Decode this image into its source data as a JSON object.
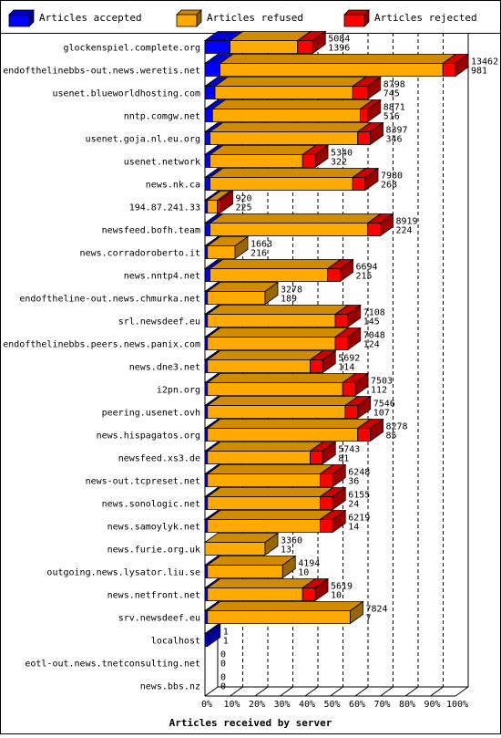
{
  "chart_data": {
    "type": "bar",
    "orientation": "horizontal",
    "stacked": true,
    "xlabel": "Articles received by server",
    "x_ticks": [
      "0%",
      "10%",
      "20%",
      "30%",
      "40%",
      "50%",
      "60%",
      "70%",
      "80%",
      "90%",
      "100%"
    ],
    "xlim": [
      0,
      100
    ],
    "grid": true,
    "legend_position": "top",
    "legend": [
      {
        "name": "Articles accepted",
        "color": "#0000ff"
      },
      {
        "name": "Articles refused",
        "color": "#ffaa00"
      },
      {
        "name": "Articles rejected",
        "color": "#ff0000"
      }
    ],
    "rows": [
      {
        "label": "glockenspiel.complete.org",
        "total": "5084",
        "rejected": "1396",
        "accepted_pct": 10,
        "refused_pct": 27,
        "rejected_pct": 6
      },
      {
        "label": "endofthelinebbs-out.news.weretis.net",
        "total": "13462",
        "rejected": "981",
        "accepted_pct": 6,
        "refused_pct": 89,
        "rejected_pct": 5
      },
      {
        "label": "usenet.blueworldhosting.com",
        "total": "8798",
        "rejected": "745",
        "accepted_pct": 4,
        "refused_pct": 55,
        "rejected_pct": 6
      },
      {
        "label": "nntp.comgw.net",
        "total": "8871",
        "rejected": "516",
        "accepted_pct": 3,
        "refused_pct": 59,
        "rejected_pct": 3
      },
      {
        "label": "usenet.goja.nl.eu.org",
        "total": "8397",
        "rejected": "346",
        "accepted_pct": 2,
        "refused_pct": 59,
        "rejected_pct": 5
      },
      {
        "label": "usenet.network",
        "total": "5340",
        "rejected": "322",
        "accepted_pct": 2,
        "refused_pct": 37,
        "rejected_pct": 5
      },
      {
        "label": "news.nk.ca",
        "total": "7980",
        "rejected": "268",
        "accepted_pct": 2,
        "refused_pct": 57,
        "rejected_pct": 5
      },
      {
        "label": "194.87.241.33",
        "total": "920",
        "rejected": "225",
        "accepted_pct": 1,
        "refused_pct": 4,
        "rejected_pct": 1
      },
      {
        "label": "newsfeed.bofh.team",
        "total": "8919",
        "rejected": "224",
        "accepted_pct": 2,
        "refused_pct": 63,
        "rejected_pct": 5
      },
      {
        "label": "news.corradoroberto.it",
        "total": "1663",
        "rejected": "216",
        "accepted_pct": 1,
        "refused_pct": 11,
        "rejected_pct": 0
      },
      {
        "label": "news.nntp4.net",
        "total": "6694",
        "rejected": "215",
        "accepted_pct": 2,
        "refused_pct": 47,
        "rejected_pct": 5
      },
      {
        "label": "endoftheline-out.news.chmurka.net",
        "total": "3278",
        "rejected": "189",
        "accepted_pct": 1,
        "refused_pct": 23,
        "rejected_pct": 0
      },
      {
        "label": "srl.newsdeef.eu",
        "total": "7108",
        "rejected": "145",
        "accepted_pct": 1,
        "refused_pct": 51,
        "rejected_pct": 5
      },
      {
        "label": "endofthelinebbs.peers.news.panix.com",
        "total": "7048",
        "rejected": "124",
        "accepted_pct": 1,
        "refused_pct": 51,
        "rejected_pct": 5
      },
      {
        "label": "news.dne3.net",
        "total": "5692",
        "rejected": "114",
        "accepted_pct": 1,
        "refused_pct": 41,
        "rejected_pct": 5
      },
      {
        "label": "i2pn.org",
        "total": "7503",
        "rejected": "112",
        "accepted_pct": 1,
        "refused_pct": 54,
        "rejected_pct": 5
      },
      {
        "label": "peering.usenet.ovh",
        "total": "7546",
        "rejected": "107",
        "accepted_pct": 1,
        "refused_pct": 55,
        "rejected_pct": 5
      },
      {
        "label": "news.hispagatos.org",
        "total": "8278",
        "rejected": "85",
        "accepted_pct": 1,
        "refused_pct": 60,
        "rejected_pct": 5
      },
      {
        "label": "newsfeed.xs3.de",
        "total": "5743",
        "rejected": "81",
        "accepted_pct": 1,
        "refused_pct": 41,
        "rejected_pct": 5
      },
      {
        "label": "news-out.tcpreset.net",
        "total": "6248",
        "rejected": "36",
        "accepted_pct": 1,
        "refused_pct": 45,
        "rejected_pct": 5
      },
      {
        "label": "news.sonologic.net",
        "total": "6155",
        "rejected": "24",
        "accepted_pct": 1,
        "refused_pct": 45,
        "rejected_pct": 5
      },
      {
        "label": "news.samoylyk.net",
        "total": "6219",
        "rejected": "14",
        "accepted_pct": 1,
        "refused_pct": 45,
        "rejected_pct": 5
      },
      {
        "label": "news.furie.org.uk",
        "total": "3360",
        "rejected": "13",
        "accepted_pct": 0,
        "refused_pct": 24,
        "rejected_pct": 0
      },
      {
        "label": "outgoing.news.lysator.liu.se",
        "total": "4194",
        "rejected": "10",
        "accepted_pct": 1,
        "refused_pct": 30,
        "rejected_pct": 0
      },
      {
        "label": "news.netfront.net",
        "total": "5619",
        "rejected": "10",
        "accepted_pct": 1,
        "refused_pct": 38,
        "rejected_pct": 5
      },
      {
        "label": "srv.newsdeef.eu",
        "total": "7824",
        "rejected": "7",
        "accepted_pct": 1,
        "refused_pct": 57,
        "rejected_pct": 0
      },
      {
        "label": "localhost",
        "total": "1",
        "rejected": "1",
        "accepted_pct": 1,
        "refused_pct": 0,
        "rejected_pct": 0
      },
      {
        "label": "eotl-out.news.tnetconsulting.net",
        "total": "0",
        "rejected": "0",
        "accepted_pct": 0,
        "refused_pct": 0,
        "rejected_pct": 0
      },
      {
        "label": "news.bbs.nz",
        "total": "0",
        "rejected": "0",
        "accepted_pct": 0,
        "refused_pct": 0,
        "rejected_pct": 0
      }
    ]
  }
}
